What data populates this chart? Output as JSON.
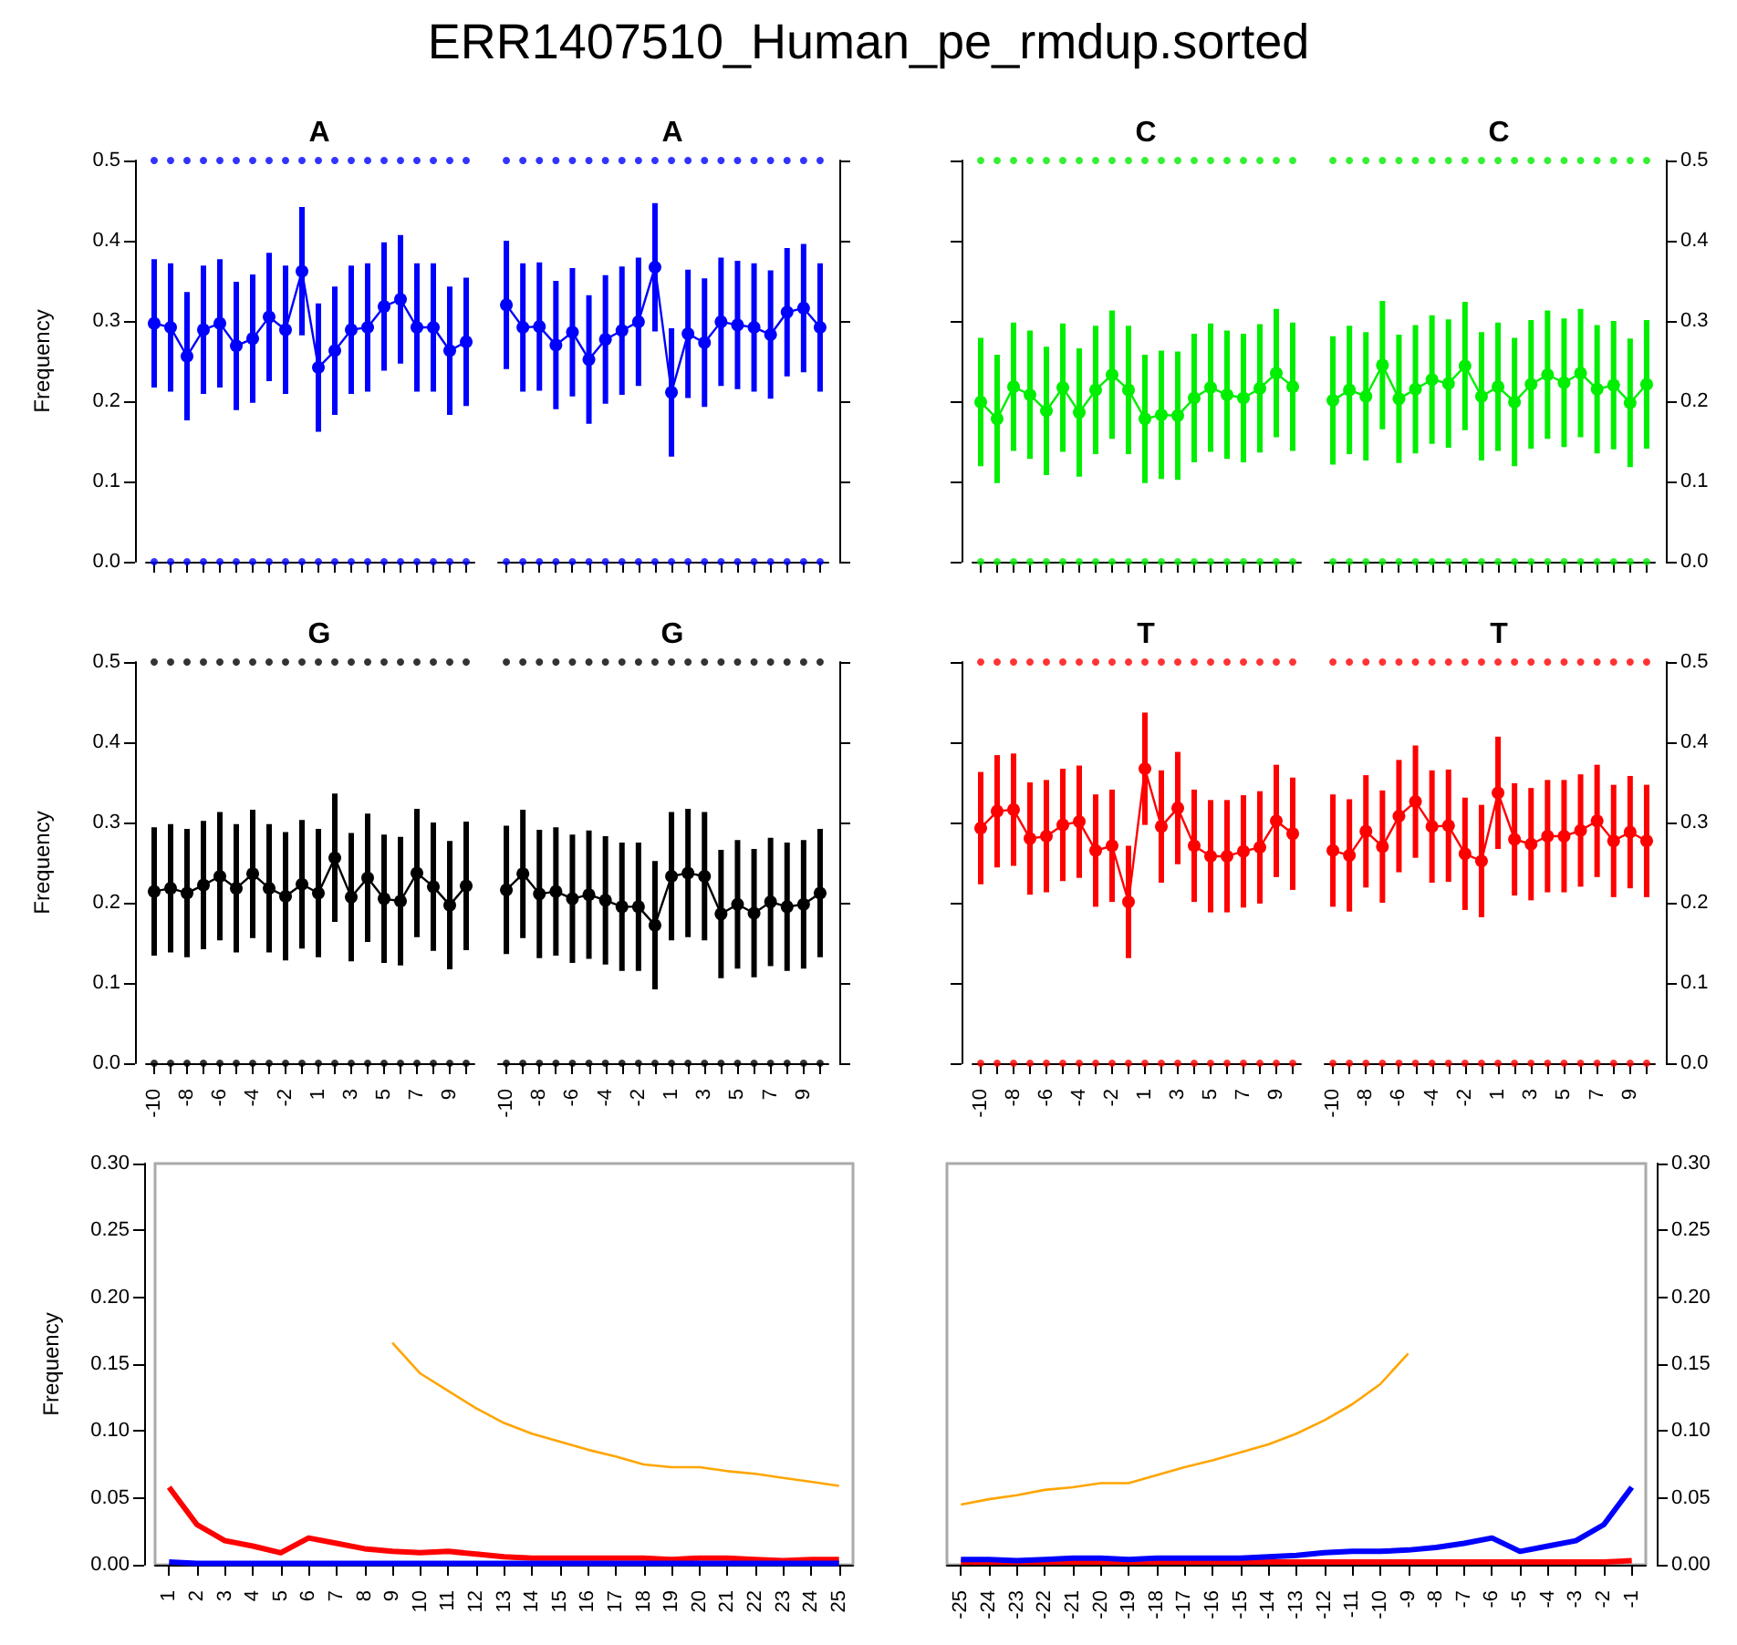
{
  "chart_data": [
    {
      "type": "line",
      "title": "A",
      "ylabel": "Frequency",
      "annotations": [
        "ERR1407510_Human_pe_rmdup.sorted"
      ],
      "marker": "circle",
      "tick_labels": "y",
      "categories": [
        "-10",
        null,
        "-8",
        null,
        "-6",
        null,
        "-4",
        null,
        "-2",
        null,
        "1",
        null,
        "3",
        null,
        "5",
        null,
        "7",
        null,
        "9",
        null
      ],
      "ylim": [
        0,
        0.5
      ],
      "yticks": [
        {
          "value": 0,
          "label": "0.0"
        },
        {
          "value": 0.1,
          "label": "0.1"
        },
        {
          "value": 0.2,
          "label": "0.2"
        },
        {
          "value": 0.3,
          "label": "0.3"
        },
        {
          "value": 0.4,
          "label": "0.4"
        },
        {
          "value": 0.5,
          "label": "0.5"
        }
      ],
      "series": [
        {
          "color": "#0000ff",
          "values": [
            0.297,
            0.292,
            0.256,
            0.289,
            0.297,
            0.269,
            0.278,
            0.305,
            0.289,
            0.362,
            0.242,
            0.263,
            0.289,
            0.292,
            0.318,
            0.327,
            0.292,
            0.292,
            0.263,
            0.274
          ],
          "errors": [
            0.08,
            0.08,
            0.08,
            0.08,
            0.08,
            0.08,
            0.08,
            0.08,
            0.08,
            0.08,
            0.08,
            0.08,
            0.08,
            0.08,
            0.08,
            0.08,
            0.08,
            0.08,
            0.08,
            0.08
          ]
        },
        {
          "type": "scatter",
          "color": "#0000ff",
          "values": [
            0,
            0,
            0,
            0,
            0,
            0,
            0,
            0,
            0,
            0,
            0,
            0,
            0,
            0,
            0,
            0,
            0,
            0,
            0,
            0
          ]
        },
        {
          "type": "scatter",
          "color": "#0000ff",
          "values": [
            0.5,
            0.5,
            0.5,
            0.5,
            0.5,
            0.5,
            0.5,
            0.5,
            0.5,
            0.5,
            0.5,
            0.5,
            0.5,
            0.5,
            0.5,
            0.5,
            0.5,
            0.5,
            0.5,
            0.5
          ]
        }
      ]
    },
    {
      "type": "line",
      "title": "A",
      "marker": "circle",
      "tick_labels": false,
      "categories": [
        "-10",
        null,
        "-8",
        null,
        "-6",
        null,
        "-4",
        null,
        "-2",
        null,
        "1",
        null,
        "3",
        null,
        "5",
        null,
        "7",
        null,
        "9",
        null
      ],
      "ylim": [
        0,
        0.5
      ],
      "yticks": [
        0,
        0.1,
        0.2,
        0.3,
        0.4,
        0.5
      ],
      "series": [
        {
          "color": "#0000ff",
          "values": [
            0.32,
            0.292,
            0.293,
            0.27,
            0.286,
            0.252,
            0.277,
            0.288,
            0.299,
            0.367,
            0.211,
            0.284,
            0.273,
            0.299,
            0.295,
            0.292,
            0.283,
            0.311,
            0.316,
            0.292
          ],
          "errors": [
            0.08,
            0.08,
            0.08,
            0.08,
            0.08,
            0.08,
            0.08,
            0.08,
            0.08,
            0.08,
            0.08,
            0.08,
            0.08,
            0.08,
            0.08,
            0.08,
            0.08,
            0.08,
            0.08,
            0.08
          ]
        },
        {
          "type": "scatter",
          "color": "#0000ff",
          "values": [
            0,
            0,
            0,
            0,
            0,
            0,
            0,
            0,
            0,
            0,
            0,
            0,
            0,
            0,
            0,
            0,
            0,
            0,
            0,
            0
          ]
        },
        {
          "type": "scatter",
          "color": "#0000ff",
          "values": [
            0.5,
            0.5,
            0.5,
            0.5,
            0.5,
            0.5,
            0.5,
            0.5,
            0.5,
            0.5,
            0.5,
            0.5,
            0.5,
            0.5,
            0.5,
            0.5,
            0.5,
            0.5,
            0.5,
            0.5
          ]
        }
      ]
    },
    {
      "type": "line",
      "title": "C",
      "marker": "circle",
      "tick_labels": false,
      "categories": [
        "-10",
        null,
        "-8",
        null,
        "-6",
        null,
        "-4",
        null,
        "-2",
        null,
        "1",
        null,
        "3",
        null,
        "5",
        null,
        "7",
        null,
        "9",
        null
      ],
      "ylim": [
        0,
        0.5
      ],
      "yticks": [
        0,
        0.1,
        0.2,
        0.3,
        0.4,
        0.5
      ],
      "series": [
        {
          "color": "#00ee00",
          "values": [
            0.199,
            0.178,
            0.218,
            0.208,
            0.188,
            0.217,
            0.186,
            0.214,
            0.233,
            0.214,
            0.178,
            0.183,
            0.182,
            0.204,
            0.217,
            0.208,
            0.204,
            0.216,
            0.235,
            0.218
          ],
          "errors": [
            0.08,
            0.08,
            0.08,
            0.08,
            0.08,
            0.08,
            0.08,
            0.08,
            0.08,
            0.08,
            0.08,
            0.08,
            0.08,
            0.08,
            0.08,
            0.08,
            0.08,
            0.08,
            0.08,
            0.08
          ]
        },
        {
          "type": "scatter",
          "color": "#00ee00",
          "values": [
            0,
            0,
            0,
            0,
            0,
            0,
            0,
            0,
            0,
            0,
            0,
            0,
            0,
            0,
            0,
            0,
            0,
            0,
            0,
            0
          ]
        },
        {
          "type": "scatter",
          "color": "#00ee00",
          "values": [
            0.5,
            0.5,
            0.5,
            0.5,
            0.5,
            0.5,
            0.5,
            0.5,
            0.5,
            0.5,
            0.5,
            0.5,
            0.5,
            0.5,
            0.5,
            0.5,
            0.5,
            0.5,
            0.5,
            0.5
          ]
        }
      ]
    },
    {
      "type": "line",
      "title": "C",
      "marker": "circle",
      "tick_labels": "y",
      "categories": [
        "-10",
        null,
        "-8",
        null,
        "-6",
        null,
        "-4",
        null,
        "-2",
        null,
        "1",
        null,
        "3",
        null,
        "5",
        null,
        "7",
        null,
        "9",
        null
      ],
      "ylim": [
        0,
        0.5
      ],
      "yticks": [
        {
          "value": 0,
          "label": "0.0"
        },
        {
          "value": 0.1,
          "label": "0.1"
        },
        {
          "value": 0.2,
          "label": "0.2"
        },
        {
          "value": 0.3,
          "label": "0.3"
        },
        {
          "value": 0.4,
          "label": "0.4"
        },
        {
          "value": 0.5,
          "label": "0.5"
        }
      ],
      "series": [
        {
          "color": "#00ee00",
          "values": [
            0.201,
            0.214,
            0.206,
            0.245,
            0.203,
            0.215,
            0.227,
            0.222,
            0.244,
            0.206,
            0.218,
            0.199,
            0.221,
            0.233,
            0.223,
            0.235,
            0.215,
            0.22,
            0.198,
            0.221
          ],
          "errors": [
            0.08,
            0.08,
            0.08,
            0.08,
            0.08,
            0.08,
            0.08,
            0.08,
            0.08,
            0.08,
            0.08,
            0.08,
            0.08,
            0.08,
            0.08,
            0.08,
            0.08,
            0.08,
            0.08,
            0.08
          ]
        },
        {
          "type": "scatter",
          "color": "#00ee00",
          "values": [
            0,
            0,
            0,
            0,
            0,
            0,
            0,
            0,
            0,
            0,
            0,
            0,
            0,
            0,
            0,
            0,
            0,
            0,
            0,
            0
          ]
        },
        {
          "type": "scatter",
          "color": "#00ee00",
          "values": [
            0.5,
            0.5,
            0.5,
            0.5,
            0.5,
            0.5,
            0.5,
            0.5,
            0.5,
            0.5,
            0.5,
            0.5,
            0.5,
            0.5,
            0.5,
            0.5,
            0.5,
            0.5,
            0.5,
            0.5
          ]
        }
      ]
    },
    {
      "type": "line",
      "title": "G",
      "ylabel": "Frequency",
      "marker": "circle",
      "categories": [
        "-10",
        null,
        "-8",
        null,
        "-6",
        null,
        "-4",
        null,
        "-2",
        null,
        "1",
        null,
        "3",
        null,
        "5",
        null,
        "7",
        null,
        "9",
        null
      ],
      "ylim": [
        0,
        0.5
      ],
      "yticks": [
        {
          "value": 0,
          "label": "0.0"
        },
        {
          "value": 0.1,
          "label": "0.1"
        },
        {
          "value": 0.2,
          "label": "0.2"
        },
        {
          "value": 0.3,
          "label": "0.3"
        },
        {
          "value": 0.4,
          "label": "0.4"
        },
        {
          "value": 0.5,
          "label": "0.5"
        }
      ],
      "series": [
        {
          "color": "#000000",
          "values": [
            0.214,
            0.218,
            0.212,
            0.222,
            0.233,
            0.218,
            0.236,
            0.218,
            0.208,
            0.223,
            0.212,
            0.256,
            0.207,
            0.231,
            0.205,
            0.202,
            0.237,
            0.22,
            0.197,
            0.221
          ],
          "errors": [
            0.08,
            0.08,
            0.08,
            0.08,
            0.08,
            0.08,
            0.08,
            0.08,
            0.08,
            0.08,
            0.08,
            0.08,
            0.08,
            0.08,
            0.08,
            0.08,
            0.08,
            0.08,
            0.08,
            0.08
          ]
        },
        {
          "type": "scatter",
          "color": "#000000",
          "values": [
            0,
            0,
            0,
            0,
            0,
            0,
            0,
            0,
            0,
            0,
            0,
            0,
            0,
            0,
            0,
            0,
            0,
            0,
            0,
            0
          ]
        },
        {
          "type": "scatter",
          "color": "#000000",
          "values": [
            0.5,
            0.5,
            0.5,
            0.5,
            0.5,
            0.5,
            0.5,
            0.5,
            0.5,
            0.5,
            0.5,
            0.5,
            0.5,
            0.5,
            0.5,
            0.5,
            0.5,
            0.5,
            0.5,
            0.5
          ]
        }
      ]
    },
    {
      "type": "line",
      "title": "G",
      "marker": "circle",
      "tick_labels": "x",
      "categories": [
        "-10",
        null,
        "-8",
        null,
        "-6",
        null,
        "-4",
        null,
        "-2",
        null,
        "1",
        null,
        "3",
        null,
        "5",
        null,
        "7",
        null,
        "9",
        null
      ],
      "ylim": [
        0,
        0.5
      ],
      "yticks": [
        0,
        0.1,
        0.2,
        0.3,
        0.4,
        0.5
      ],
      "series": [
        {
          "color": "#000000",
          "values": [
            0.216,
            0.236,
            0.211,
            0.214,
            0.205,
            0.21,
            0.203,
            0.195,
            0.195,
            0.172,
            0.233,
            0.237,
            0.233,
            0.186,
            0.198,
            0.187,
            0.201,
            0.195,
            0.198,
            0.212
          ],
          "errors": [
            0.08,
            0.08,
            0.08,
            0.08,
            0.08,
            0.08,
            0.08,
            0.08,
            0.08,
            0.08,
            0.08,
            0.08,
            0.08,
            0.08,
            0.08,
            0.08,
            0.08,
            0.08,
            0.08,
            0.08
          ]
        },
        {
          "type": "scatter",
          "color": "#000000",
          "values": [
            0,
            0,
            0,
            0,
            0,
            0,
            0,
            0,
            0,
            0,
            0,
            0,
            0,
            0,
            0,
            0,
            0,
            0,
            0,
            0
          ]
        },
        {
          "type": "scatter",
          "color": "#000000",
          "values": [
            0.5,
            0.5,
            0.5,
            0.5,
            0.5,
            0.5,
            0.5,
            0.5,
            0.5,
            0.5,
            0.5,
            0.5,
            0.5,
            0.5,
            0.5,
            0.5,
            0.5,
            0.5,
            0.5,
            0.5
          ]
        }
      ]
    },
    {
      "type": "line",
      "title": "T",
      "marker": "circle",
      "tick_labels": "x",
      "categories": [
        "-10",
        null,
        "-8",
        null,
        "-6",
        null,
        "-4",
        null,
        "-2",
        null,
        "1",
        null,
        "3",
        null,
        "5",
        null,
        "7",
        null,
        "9",
        null
      ],
      "ylim": [
        0,
        0.5
      ],
      "yticks": [
        0,
        0.1,
        0.2,
        0.3,
        0.4,
        0.5
      ],
      "series": [
        {
          "color": "#ff0000",
          "values": [
            0.293,
            0.314,
            0.316,
            0.28,
            0.283,
            0.297,
            0.301,
            0.265,
            0.271,
            0.201,
            0.367,
            0.295,
            0.318,
            0.271,
            0.258,
            0.258,
            0.264,
            0.269,
            0.302,
            0.286
          ],
          "errors": [
            0.07,
            0.07,
            0.07,
            0.07,
            0.07,
            0.07,
            0.07,
            0.07,
            0.07,
            0.07,
            0.07,
            0.07,
            0.07,
            0.07,
            0.07,
            0.07,
            0.07,
            0.07,
            0.07,
            0.07
          ]
        },
        {
          "type": "scatter",
          "color": "#ff0000",
          "values": [
            0,
            0,
            0,
            0,
            0,
            0,
            0,
            0,
            0,
            0,
            0,
            0,
            0,
            0,
            0,
            0,
            0,
            0,
            0,
            0
          ]
        },
        {
          "type": "scatter",
          "color": "#ff0000",
          "values": [
            0.5,
            0.5,
            0.5,
            0.5,
            0.5,
            0.5,
            0.5,
            0.5,
            0.5,
            0.5,
            0.5,
            0.5,
            0.5,
            0.5,
            0.5,
            0.5,
            0.5,
            0.5,
            0.5,
            0.5
          ]
        }
      ]
    },
    {
      "type": "line",
      "title": "T",
      "marker": "circle",
      "categories": [
        "-10",
        null,
        "-8",
        null,
        "-6",
        null,
        "-4",
        null,
        "-2",
        null,
        "1",
        null,
        "3",
        null,
        "5",
        null,
        "7",
        null,
        "9",
        null
      ],
      "ylim": [
        0,
        0.5
      ],
      "yticks": [
        {
          "value": 0,
          "label": "0.0"
        },
        {
          "value": 0.1,
          "label": "0.1"
        },
        {
          "value": 0.2,
          "label": "0.2"
        },
        {
          "value": 0.3,
          "label": "0.3"
        },
        {
          "value": 0.4,
          "label": "0.4"
        },
        {
          "value": 0.5,
          "label": "0.5"
        }
      ],
      "series": [
        {
          "color": "#ff0000",
          "values": [
            0.265,
            0.259,
            0.289,
            0.27,
            0.308,
            0.326,
            0.295,
            0.296,
            0.261,
            0.252,
            0.337,
            0.279,
            0.273,
            0.283,
            0.283,
            0.29,
            0.302,
            0.277,
            0.288,
            0.277
          ],
          "errors": [
            0.07,
            0.07,
            0.07,
            0.07,
            0.07,
            0.07,
            0.07,
            0.07,
            0.07,
            0.07,
            0.07,
            0.07,
            0.07,
            0.07,
            0.07,
            0.07,
            0.07,
            0.07,
            0.07,
            0.07
          ]
        },
        {
          "type": "scatter",
          "color": "#ff0000",
          "values": [
            0,
            0,
            0,
            0,
            0,
            0,
            0,
            0,
            0,
            0,
            0,
            0,
            0,
            0,
            0,
            0,
            0,
            0,
            0,
            0
          ]
        },
        {
          "type": "scatter",
          "color": "#ff0000",
          "values": [
            0.5,
            0.5,
            0.5,
            0.5,
            0.5,
            0.5,
            0.5,
            0.5,
            0.5,
            0.5,
            0.5,
            0.5,
            0.5,
            0.5,
            0.5,
            0.5,
            0.5,
            0.5,
            0.5,
            0.5
          ]
        }
      ]
    },
    {
      "type": "line",
      "ylabel": "Frequency",
      "marker": "none",
      "categories": [
        "1",
        "2",
        "3",
        "4",
        "5",
        "6",
        "7",
        "8",
        "9",
        "10",
        "11",
        "12",
        "13",
        "14",
        "15",
        "16",
        "17",
        "18",
        "19",
        "20",
        "21",
        "22",
        "23",
        "24",
        "25"
      ],
      "ylim": [
        0,
        0.3
      ],
      "yticks": [
        {
          "value": 0,
          "label": "0.00"
        },
        {
          "value": 0.05,
          "label": "0.05"
        },
        {
          "value": 0.1,
          "label": "0.10"
        },
        {
          "value": 0.15,
          "label": "0.15"
        },
        {
          "value": 0.2,
          "label": "0.20"
        },
        {
          "value": 0.25,
          "label": "0.25"
        },
        {
          "value": 0.3,
          "label": "0.30"
        }
      ],
      "series": [
        {
          "color": "#ffa500",
          "values": [
            null,
            null,
            null,
            null,
            null,
            null,
            null,
            null,
            0.166,
            0.143,
            0.13,
            0.117,
            0.106,
            0.098,
            0.092,
            0.086,
            0.081,
            0.075,
            0.073,
            0.073,
            0.07,
            0.068,
            0.065,
            0.062,
            0.059
          ]
        },
        {
          "color": "#ff0000",
          "values": [
            0.058,
            0.03,
            0.018,
            0.014,
            0.009,
            0.02,
            0.016,
            0.012,
            0.01,
            0.009,
            0.01,
            0.008,
            0.006,
            0.005,
            0.005,
            0.005,
            0.005,
            0.005,
            0.004,
            0.005,
            0.005,
            0.004,
            0.003,
            0.004,
            0.004
          ]
        },
        {
          "color": "#0000ff",
          "values": [
            0.002,
            0.001,
            0.001,
            0.001,
            0.001,
            0.001,
            0.001,
            0.001,
            0.001,
            0.001,
            0.001,
            0.001,
            0.001,
            0.001,
            0.001,
            0.001,
            0.001,
            0.001,
            0.001,
            0.001,
            0.001,
            0.001,
            0.001,
            0.001,
            0.001
          ]
        }
      ]
    },
    {
      "type": "line",
      "marker": "none",
      "categories": [
        "-25",
        "-24",
        "-23",
        "-22",
        "-21",
        "-20",
        "-19",
        "-18",
        "-17",
        "-16",
        "-15",
        "-14",
        "-13",
        "-12",
        "-11",
        "-10",
        "-9",
        "-8",
        "-7",
        "-6",
        "-5",
        "-4",
        "-3",
        "-2",
        "-1"
      ],
      "ylim": [
        0,
        0.3
      ],
      "yticks": [
        {
          "value": 0,
          "label": "0.00"
        },
        {
          "value": 0.05,
          "label": "0.05"
        },
        {
          "value": 0.1,
          "label": "0.10"
        },
        {
          "value": 0.15,
          "label": "0.15"
        },
        {
          "value": 0.2,
          "label": "0.20"
        },
        {
          "value": 0.25,
          "label": "0.25"
        },
        {
          "value": 0.3,
          "label": "0.30"
        }
      ],
      "series": [
        {
          "color": "#ffa500",
          "values": [
            0.045,
            0.049,
            0.052,
            0.056,
            0.058,
            0.061,
            0.061,
            0.067,
            0.073,
            0.078,
            0.084,
            0.09,
            0.098,
            0.108,
            0.12,
            0.135,
            0.158,
            null,
            null,
            null,
            null,
            null,
            null,
            null,
            null
          ]
        },
        {
          "color": "#ff0000",
          "values": [
            0.002,
            0.002,
            0.002,
            0.002,
            0.002,
            0.002,
            0.002,
            0.002,
            0.002,
            0.002,
            0.002,
            0.002,
            0.002,
            0.002,
            0.002,
            0.002,
            0.002,
            0.002,
            0.002,
            0.002,
            0.002,
            0.002,
            0.002,
            0.002,
            0.003
          ]
        },
        {
          "color": "#0000ff",
          "values": [
            0.004,
            0.004,
            0.003,
            0.004,
            0.005,
            0.005,
            0.004,
            0.005,
            0.005,
            0.005,
            0.005,
            0.006,
            0.007,
            0.009,
            0.01,
            0.01,
            0.011,
            0.013,
            0.016,
            0.02,
            0.01,
            0.014,
            0.018,
            0.03,
            0.058
          ]
        }
      ]
    }
  ]
}
